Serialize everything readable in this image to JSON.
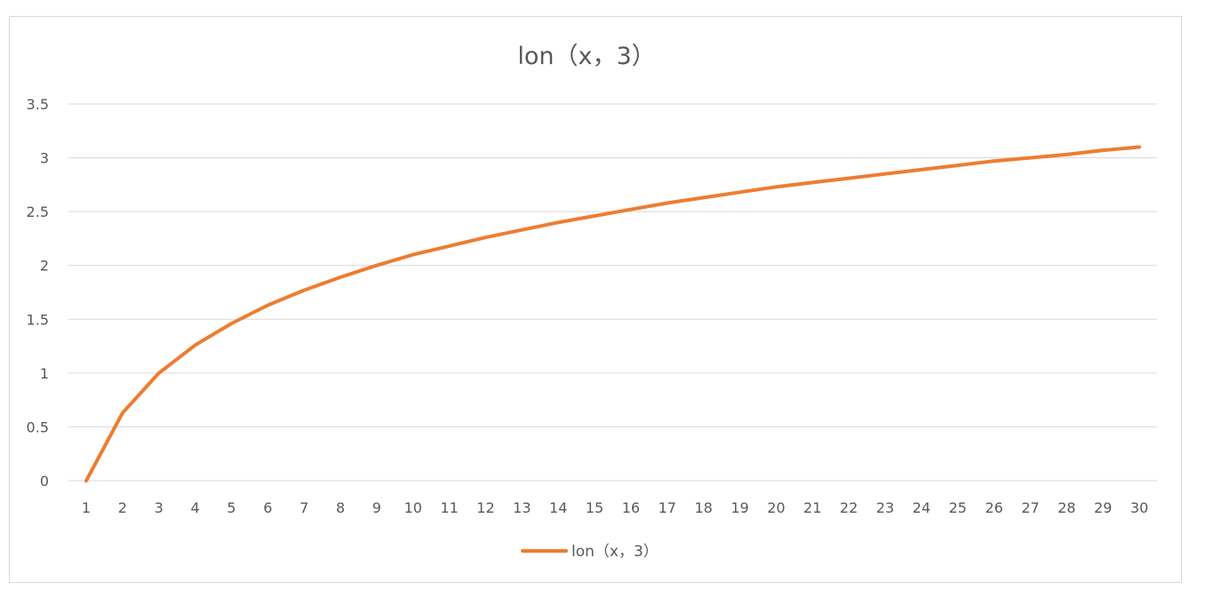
{
  "chart_data": {
    "type": "line",
    "title": "lon（x，3）",
    "xlabel": "",
    "ylabel": "",
    "x": [
      1,
      2,
      3,
      4,
      5,
      6,
      7,
      8,
      9,
      10,
      11,
      12,
      13,
      14,
      15,
      16,
      17,
      18,
      19,
      20,
      21,
      22,
      23,
      24,
      25,
      26,
      27,
      28,
      29,
      30
    ],
    "series": [
      {
        "name": "lon（x，3）",
        "color": "#ed7d31",
        "values": [
          0,
          0.63,
          1.0,
          1.26,
          1.46,
          1.63,
          1.77,
          1.89,
          2.0,
          2.1,
          2.18,
          2.26,
          2.33,
          2.4,
          2.46,
          2.52,
          2.58,
          2.63,
          2.68,
          2.73,
          2.77,
          2.81,
          2.85,
          2.89,
          2.93,
          2.97,
          3.0,
          3.03,
          3.07,
          3.1
        ]
      }
    ],
    "y_ticks": [
      "0",
      "0.5",
      "1",
      "1.5",
      "2",
      "2.5",
      "3",
      "3.5"
    ],
    "y_tick_values": [
      0,
      0.5,
      1,
      1.5,
      2,
      2.5,
      3,
      3.5
    ],
    "ylim": [
      0,
      3.5
    ],
    "grid": true,
    "legend_position": "bottom"
  }
}
